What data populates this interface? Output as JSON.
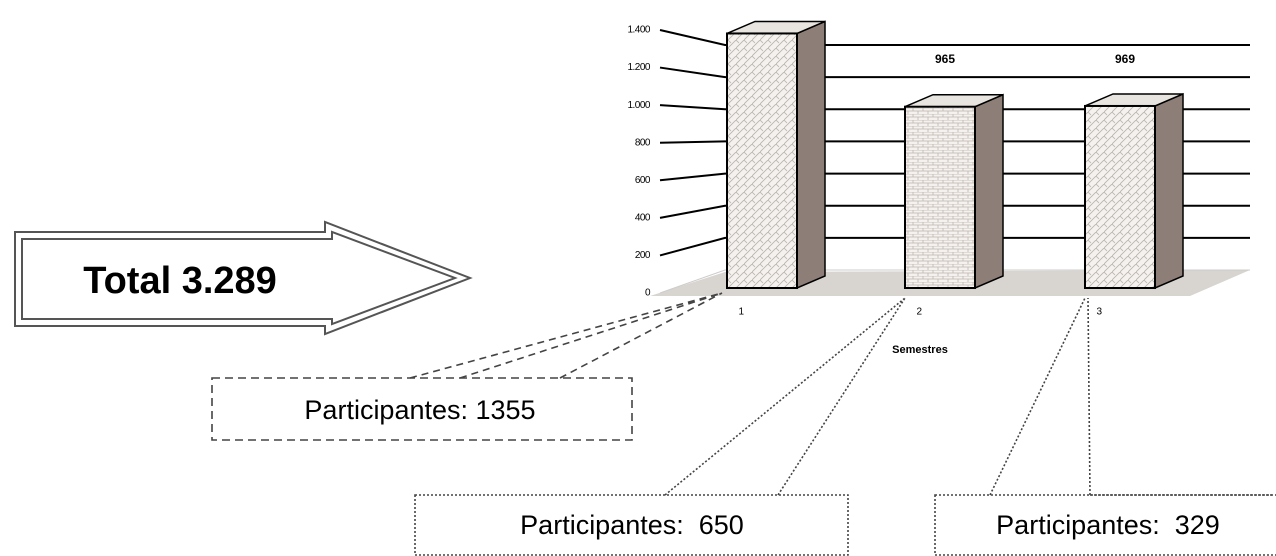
{
  "chart_data": {
    "type": "bar3d",
    "x_label": "Semestres",
    "categories": [
      "1",
      "2",
      "3"
    ],
    "values": [
      1355,
      965,
      969
    ],
    "value_labels": [
      null,
      "965",
      "969"
    ],
    "color": "#f2efec",
    "side_color": "#8d7f77",
    "ylim": [
      0,
      1400
    ],
    "yticks": [
      0,
      200,
      400,
      600,
      800,
      {
        "value": 1000,
        "label": "1.000"
      },
      {
        "value": 1200,
        "label": "1.200"
      },
      {
        "value": 1400,
        "label": "1.400"
      }
    ],
    "grid": true,
    "annotations": [
      "Total 3.289",
      "Participantes: 1355",
      "Participantes:  650",
      "Participantes:  329"
    ]
  }
}
